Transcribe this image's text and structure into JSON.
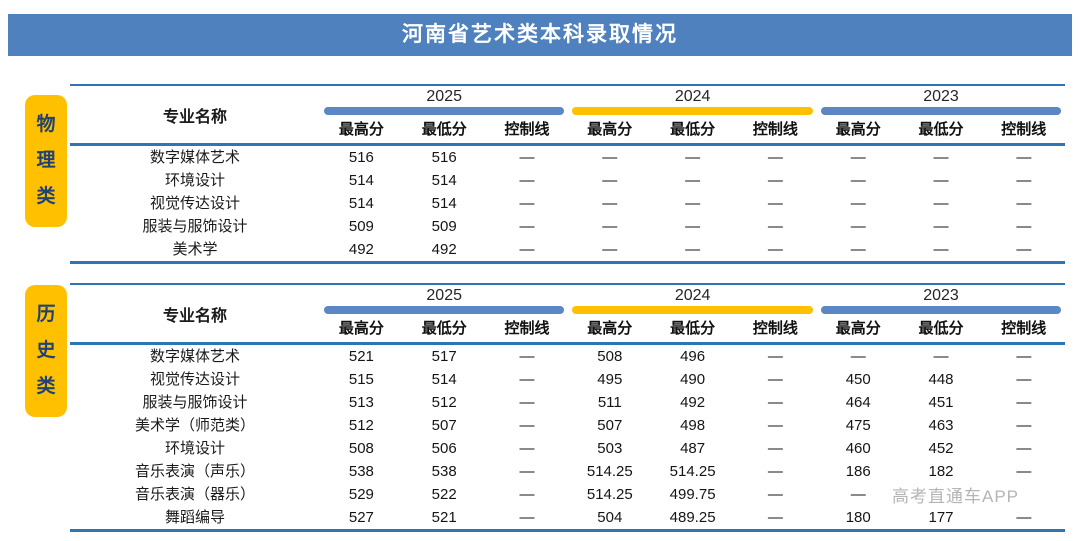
{
  "title": "河南省艺术类本科录取情况",
  "watermark": "高考直通车APP",
  "table_columns": {
    "major_header": "专业名称",
    "sub_headers": [
      "最高分",
      "最低分",
      "控制线"
    ],
    "years": [
      "2025",
      "2024",
      "2023"
    ]
  },
  "colors": {
    "title_bar_blue": "#4E81BD",
    "rule_blue": "#2E75B6",
    "year_bar_blue": "#5B87C5",
    "year_bar_gold": "#FFC000",
    "category_label_bg": "#FFC000",
    "category_label_text": "#1F4273",
    "watermark_gray": "#B5B5B5"
  },
  "sections": [
    {
      "label": "物理类",
      "rows": [
        {
          "major": "数字媒体艺术",
          "values": [
            "516",
            "516",
            "—",
            "—",
            "—",
            "—",
            "—",
            "—",
            "—"
          ]
        },
        {
          "major": "环境设计",
          "values": [
            "514",
            "514",
            "—",
            "—",
            "—",
            "—",
            "—",
            "—",
            "—"
          ]
        },
        {
          "major": "视觉传达设计",
          "values": [
            "514",
            "514",
            "—",
            "—",
            "—",
            "—",
            "—",
            "—",
            "—"
          ]
        },
        {
          "major": "服装与服饰设计",
          "values": [
            "509",
            "509",
            "—",
            "—",
            "—",
            "—",
            "—",
            "—",
            "—"
          ]
        },
        {
          "major": "美术学",
          "values": [
            "492",
            "492",
            "—",
            "—",
            "—",
            "—",
            "—",
            "—",
            "—"
          ]
        }
      ]
    },
    {
      "label": "历史类",
      "rows": [
        {
          "major": "数字媒体艺术",
          "values": [
            "521",
            "517",
            "—",
            "508",
            "496",
            "—",
            "—",
            "—",
            "—"
          ]
        },
        {
          "major": "视觉传达设计",
          "values": [
            "515",
            "514",
            "—",
            "495",
            "490",
            "—",
            "450",
            "448",
            "—"
          ]
        },
        {
          "major": "服装与服饰设计",
          "values": [
            "513",
            "512",
            "—",
            "511",
            "492",
            "—",
            "464",
            "451",
            "—"
          ]
        },
        {
          "major": "美术学（师范类）",
          "values": [
            "512",
            "507",
            "—",
            "507",
            "498",
            "—",
            "475",
            "463",
            "—"
          ]
        },
        {
          "major": "环境设计",
          "values": [
            "508",
            "506",
            "—",
            "503",
            "487",
            "—",
            "460",
            "452",
            "—"
          ]
        },
        {
          "major": "音乐表演（声乐）",
          "values": [
            "538",
            "538",
            "—",
            "514.25",
            "514.25",
            "—",
            "186",
            "182",
            "—"
          ]
        },
        {
          "major": "音乐表演（器乐）",
          "values": [
            "529",
            "522",
            "—",
            "514.25",
            "499.75",
            "—",
            "—",
            "",
            ""
          ]
        },
        {
          "major": "舞蹈编导",
          "values": [
            "527",
            "521",
            "—",
            "504",
            "489.25",
            "—",
            "180",
            "177",
            "—"
          ]
        }
      ]
    }
  ]
}
